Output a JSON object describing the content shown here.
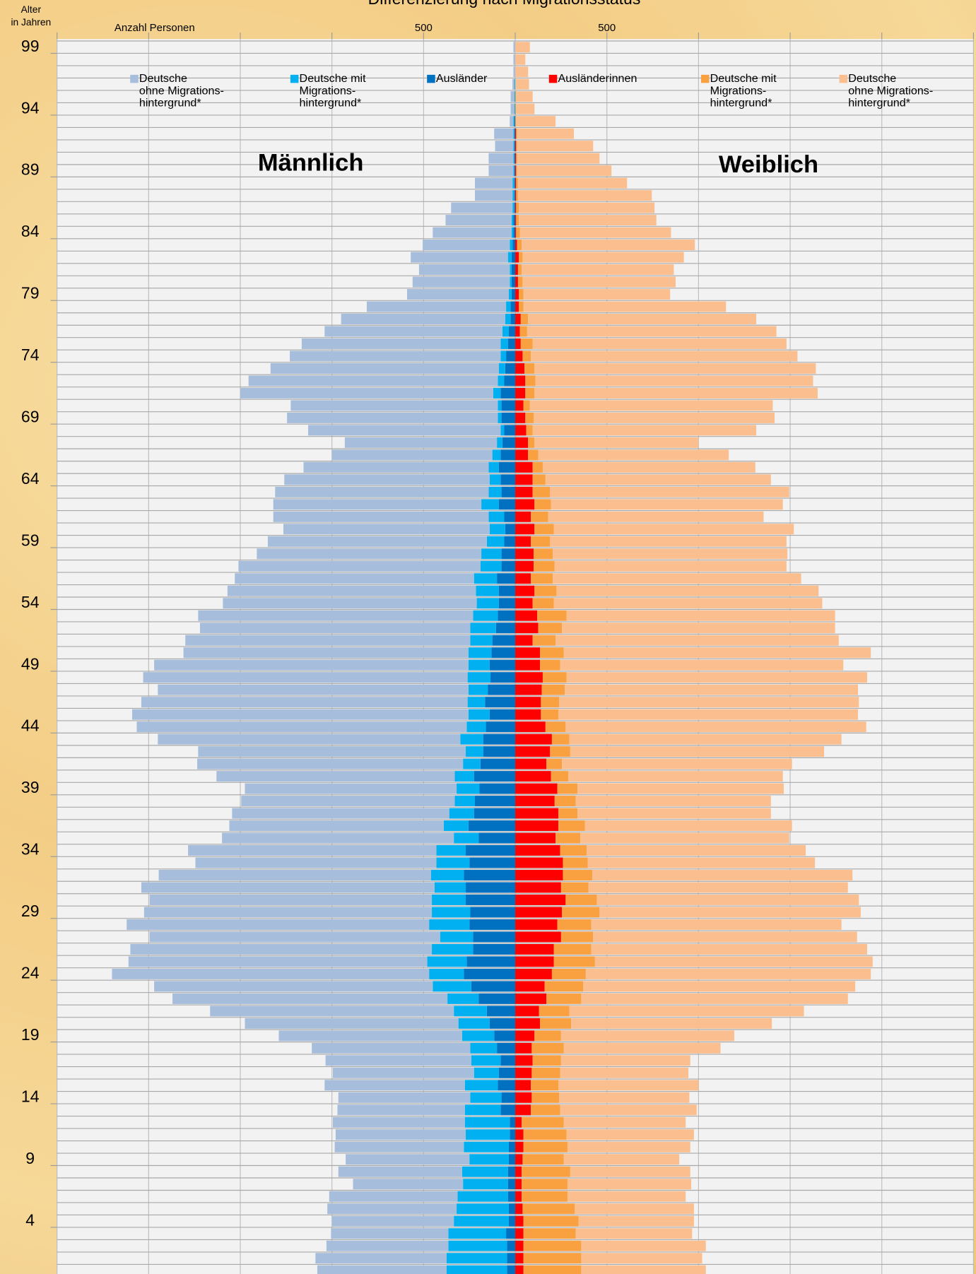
{
  "chart_data": {
    "type": "population_pyramid",
    "title": "Differenzierung nach Migrationsstatus",
    "y_axis_label": "Alter\nin Jahren",
    "x_axis_label": "Anzahl Personen",
    "left_label": "Männlich",
    "right_label": "Weiblich",
    "categories": [
      null,
      null,
      null,
      null,
      "4",
      null,
      null,
      null,
      null,
      "9",
      null,
      null,
      null,
      null,
      "14",
      null,
      null,
      null,
      null,
      "19",
      null,
      null,
      null,
      null,
      "24",
      null,
      null,
      null,
      null,
      "29",
      null,
      null,
      null,
      null,
      "34",
      null,
      null,
      null,
      null,
      "39",
      null,
      null,
      null,
      null,
      "44",
      null,
      null,
      null,
      null,
      "49",
      null,
      null,
      null,
      null,
      "54",
      null,
      null,
      null,
      null,
      "59",
      null,
      null,
      null,
      null,
      "64",
      null,
      null,
      null,
      null,
      "69",
      null,
      null,
      null,
      null,
      "74",
      null,
      null,
      null,
      null,
      "79",
      null,
      null,
      null,
      null,
      "84",
      null,
      null,
      null,
      null,
      "89",
      null,
      null,
      null,
      null,
      "94",
      null,
      null,
      null,
      null,
      "99"
    ],
    "xlim": [
      -2500,
      2500
    ],
    "xticks": [
      {
        "value": -500,
        "label": "500"
      },
      500
    ],
    "xgrid": [
      -2500,
      -2000,
      -1500,
      -1000,
      -500,
      0,
      500,
      1000,
      1500,
      2000,
      2500
    ],
    "series": [
      {
        "name": "Deutsche\nohne Migrations-\nhintergrund*",
        "color": "#a6bddb",
        "side": "left",
        "values": [
          705,
          715,
          665,
          640,
          665,
          705,
          700,
          600,
          675,
          675,
          705,
          710,
          720,
          695,
          720,
          765,
          770,
          795,
          865,
          1000,
          1165,
          1330,
          1500,
          1520,
          1730,
          1630,
          1645,
          1585,
          1650,
          1570,
          1540,
          1600,
          1485,
          1315,
          1355,
          1265,
          1170,
          1185,
          1165,
          1155,
          1300,
          1450,
          1460,
          1650,
          1800,
          1835,
          1780,
          1695,
          1770,
          1715,
          1555,
          1555,
          1475,
          1500,
          1385,
          1355,
          1305,
          1320,
          1225,
          1195,
          1125,
          1175,
          1135,
          1165,
          1120,
          1010,
          875,
          830,
          1050,
          1150,
          1130,
          1380,
          1360,
          1245,
          1150,
          1085,
          970,
          895,
          760,
          555,
          530,
          495,
          530,
          475,
          430,
          360,
          335,
          205,
          205,
          135,
          135,
          100,
          105,
          20,
          20,
          20,
          10,
          10,
          10,
          10
        ]
      },
      {
        "name": "Deutsche mit\nMigrations-\nhintergrund*",
        "color": "#00b0f0",
        "side": "left",
        "values": [
          330,
          330,
          320,
          315,
          300,
          285,
          275,
          245,
          250,
          215,
          245,
          240,
          245,
          195,
          170,
          180,
          135,
          160,
          145,
          175,
          170,
          180,
          170,
          210,
          190,
          215,
          225,
          180,
          220,
          210,
          185,
          170,
          180,
          180,
          160,
          135,
          135,
          135,
          110,
          125,
          105,
          95,
          95,
          125,
          105,
          115,
          95,
          105,
          125,
          115,
          125,
          120,
          140,
          135,
          120,
          125,
          125,
          115,
          110,
          95,
          85,
          85,
          95,
          70,
          60,
          55,
          45,
          30,
          20,
          20,
          20,
          40,
          35,
          35,
          30,
          40,
          35,
          30,
          25,
          15,
          10,
          10,
          20,
          15,
          10,
          10,
          10,
          10,
          10,
          5,
          5,
          5,
          5,
          5,
          5,
          5,
          5,
          0,
          0,
          0
        ]
      },
      {
        "name": "Ausländer",
        "color": "#0070c0",
        "side": "left",
        "values": [
          45,
          45,
          45,
          50,
          35,
          35,
          40,
          40,
          40,
          35,
          35,
          30,
          30,
          80,
          75,
          95,
          90,
          80,
          100,
          115,
          140,
          155,
          200,
          240,
          280,
          265,
          230,
          230,
          250,
          245,
          270,
          270,
          280,
          250,
          270,
          200,
          255,
          225,
          220,
          195,
          225,
          190,
          175,
          175,
          160,
          140,
          165,
          150,
          135,
          140,
          130,
          125,
          105,
          95,
          90,
          90,
          100,
          75,
          75,
          60,
          55,
          60,
          90,
          75,
          80,
          90,
          80,
          70,
          60,
          75,
          75,
          80,
          60,
          55,
          50,
          40,
          35,
          25,
          25,
          20,
          20,
          20,
          20,
          15,
          10,
          10,
          5,
          5,
          5,
          5,
          5,
          5,
          5,
          5,
          0,
          0,
          0,
          0,
          0,
          0
        ]
      },
      {
        "name": "Ausländerinnen",
        "color": "#ff0000",
        "side": "right",
        "values": [
          45,
          45,
          45,
          45,
          45,
          40,
          35,
          35,
          35,
          40,
          45,
          45,
          35,
          85,
          90,
          85,
          90,
          95,
          90,
          105,
          135,
          130,
          170,
          160,
          200,
          210,
          210,
          250,
          230,
          255,
          275,
          250,
          260,
          260,
          245,
          220,
          235,
          235,
          215,
          230,
          195,
          170,
          190,
          200,
          165,
          140,
          140,
          145,
          150,
          135,
          135,
          95,
          125,
          120,
          95,
          105,
          85,
          100,
          100,
          85,
          105,
          85,
          105,
          95,
          95,
          95,
          70,
          70,
          60,
          55,
          45,
          55,
          55,
          50,
          40,
          30,
          25,
          30,
          20,
          20,
          15,
          15,
          20,
          10,
          5,
          5,
          5,
          5,
          5,
          5,
          5,
          5,
          5,
          0,
          0,
          0,
          0,
          0,
          0,
          0
        ]
      },
      {
        "name": "Deutsche mit\nMigrations-\nhintergrund*",
        "color": "#f9a040",
        "side": "right",
        "values": [
          315,
          315,
          315,
          285,
          300,
          285,
          250,
          250,
          265,
          225,
          240,
          235,
          230,
          160,
          150,
          150,
          155,
          155,
          175,
          145,
          170,
          165,
          190,
          210,
          185,
          225,
          205,
          175,
          185,
          205,
          170,
          150,
          160,
          135,
          145,
          135,
          145,
          105,
          115,
          110,
          95,
          85,
          110,
          95,
          110,
          95,
          100,
          125,
          130,
          110,
          130,
          125,
          130,
          160,
          115,
          120,
          120,
          115,
          105,
          105,
          105,
          95,
          90,
          95,
          70,
          55,
          55,
          35,
          35,
          45,
          35,
          50,
          55,
          55,
          45,
          65,
          40,
          40,
          25,
          25,
          25,
          20,
          20,
          25,
          20,
          15,
          15,
          10,
          10,
          5,
          5,
          5,
          5,
          5,
          5,
          5,
          0,
          0,
          0,
          0
        ]
      },
      {
        "name": "Deutsche\nohne Migrations-\nhintergrund*",
        "color": "#fbbf8f",
        "side": "right",
        "values": [
          680,
          660,
          680,
          635,
          630,
          650,
          645,
          675,
          655,
          630,
          670,
          695,
          665,
          745,
          710,
          765,
          700,
          705,
          855,
          945,
          1095,
          1280,
          1455,
          1485,
          1555,
          1515,
          1505,
          1440,
          1365,
          1425,
          1430,
          1415,
          1420,
          1240,
          1195,
          1140,
          1130,
          1055,
          1065,
          1125,
          1170,
          1255,
          1385,
          1485,
          1640,
          1635,
          1635,
          1600,
          1640,
          1545,
          1675,
          1545,
          1490,
          1465,
          1465,
          1430,
          1355,
          1265,
          1280,
          1290,
          1310,
          1175,
          1265,
          1305,
          1230,
          1160,
          1040,
          895,
          1220,
          1315,
          1325,
          1545,
          1515,
          1535,
          1455,
          1385,
          1360,
          1245,
          1105,
          800,
          835,
          830,
          880,
          945,
          825,
          750,
          740,
          730,
          595,
          515,
          450,
          415,
          310,
          215,
          100,
          90,
          75,
          70,
          55,
          80
        ]
      }
    ]
  }
}
